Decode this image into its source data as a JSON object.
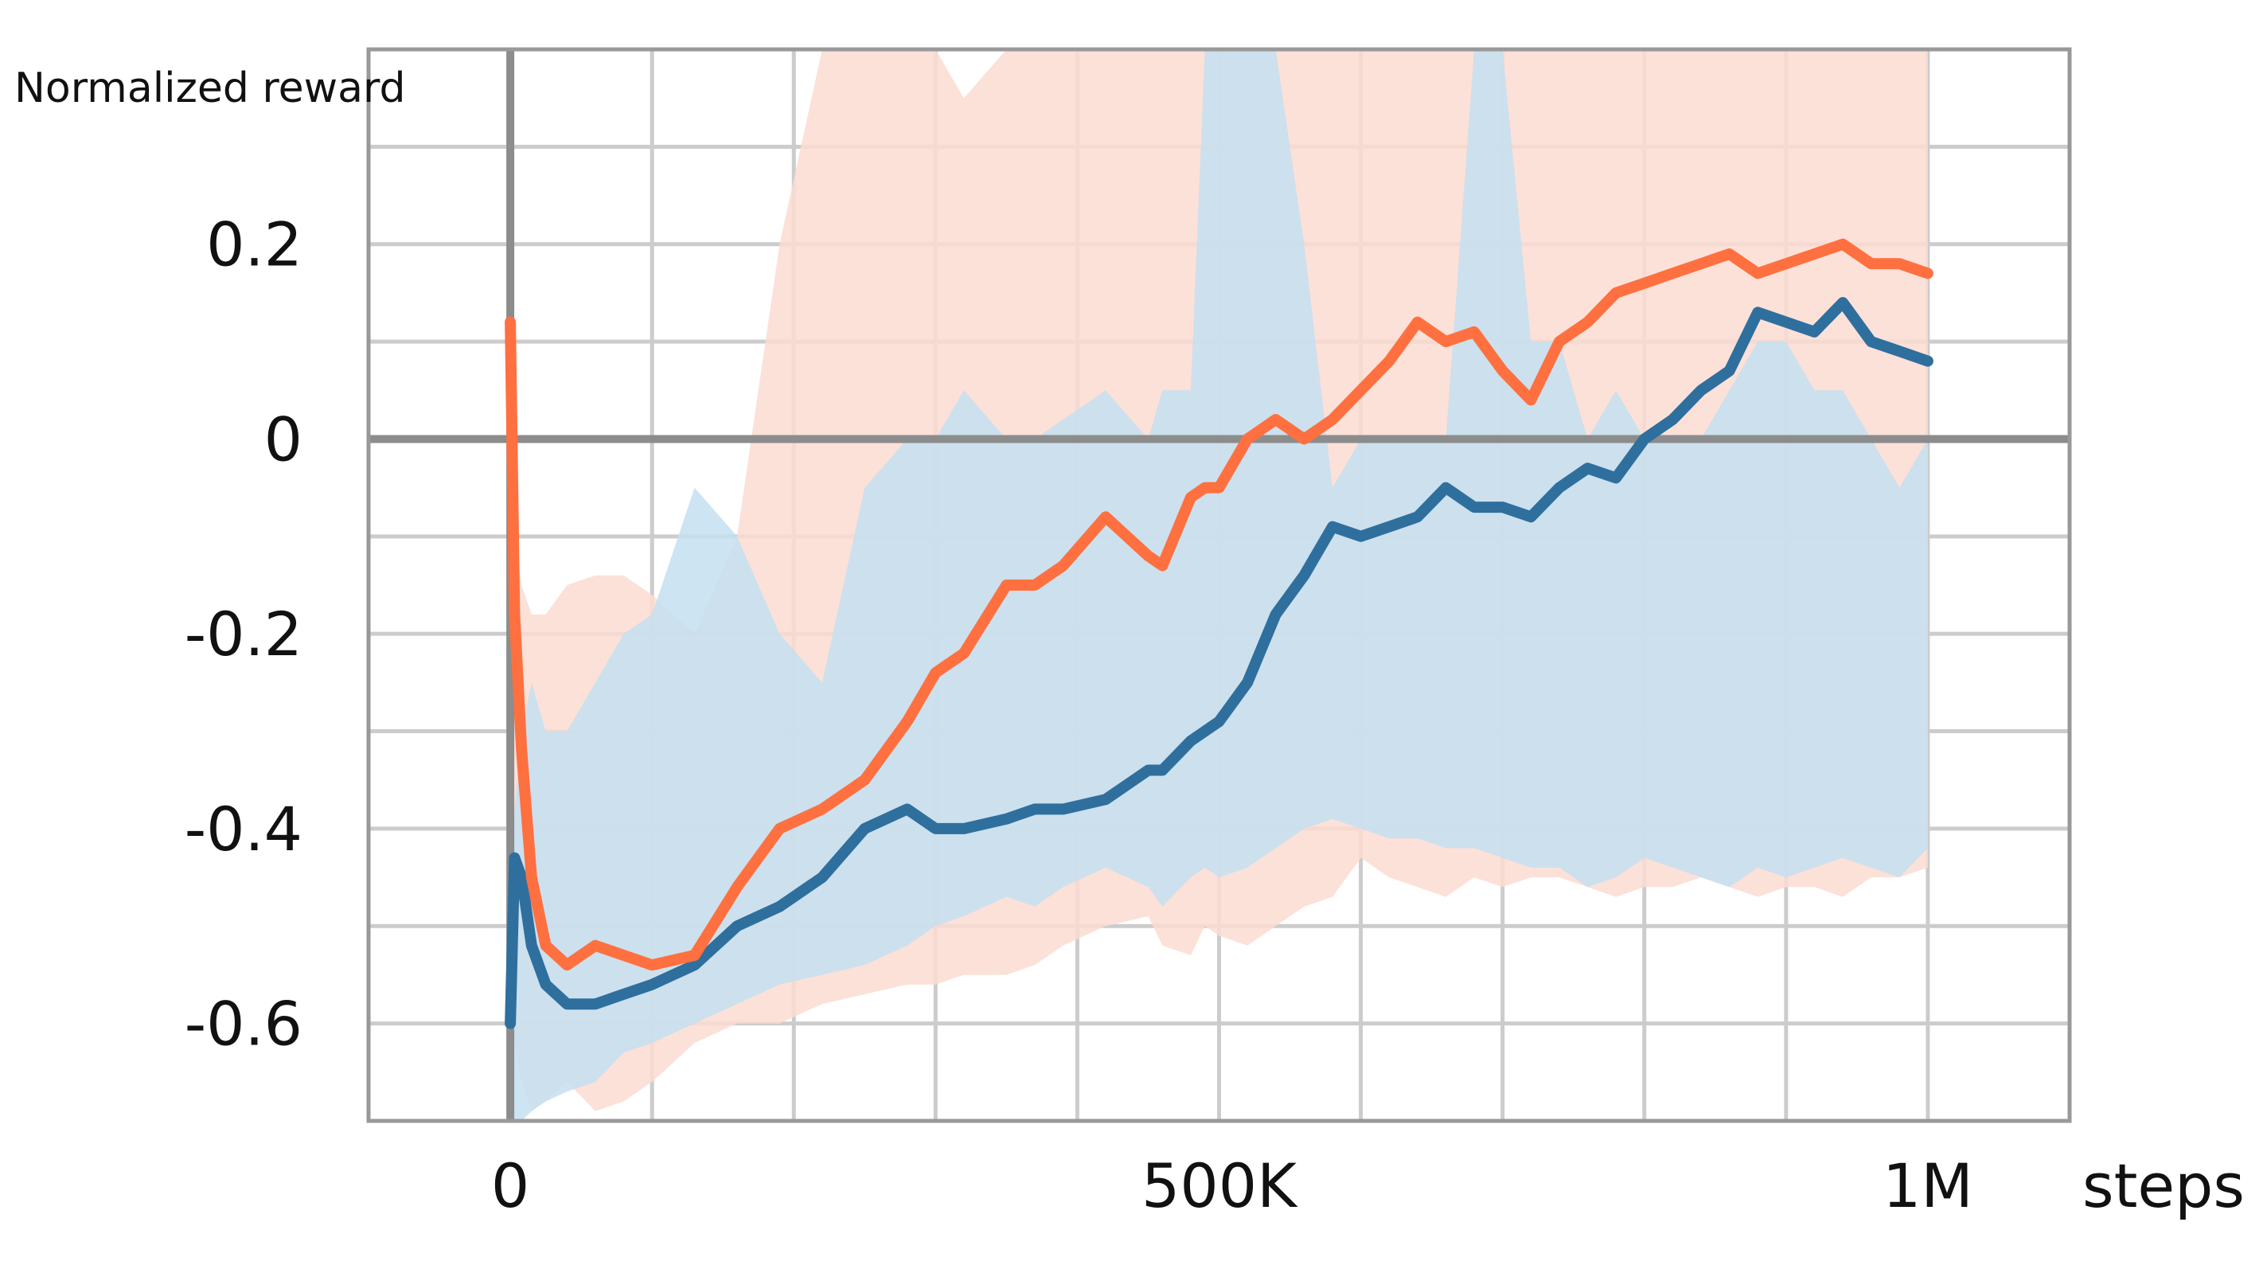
{
  "chart_data": {
    "type": "line",
    "title": "",
    "ylabel": "Normalized reward",
    "xlabel": "steps",
    "xlim": [
      -100000,
      1100000
    ],
    "ylim": [
      -0.7,
      0.4
    ],
    "x_ticks": [
      {
        "value": 0,
        "label": "0"
      },
      {
        "value": 500000,
        "label": "500K"
      },
      {
        "value": 1000000,
        "label": "1M"
      }
    ],
    "y_ticks": [
      {
        "value": 0.2,
        "label": "0.2"
      },
      {
        "value": 0,
        "label": "0"
      },
      {
        "value": -0.2,
        "label": "-0.2"
      },
      {
        "value": -0.4,
        "label": "-0.4"
      },
      {
        "value": -0.6,
        "label": "-0.6"
      }
    ],
    "grid": true,
    "legend": "none",
    "series": [
      {
        "color": "#ff7040",
        "band_color": "#fcdcd2",
        "x": [
          0,
          3000,
          8000,
          15000,
          25000,
          40000,
          60000,
          80000,
          100000,
          130000,
          160000,
          190000,
          220000,
          250000,
          280000,
          300000,
          320000,
          350000,
          370000,
          390000,
          420000,
          450000,
          460000,
          480000,
          490000,
          500000,
          520000,
          540000,
          560000,
          580000,
          600000,
          620000,
          640000,
          660000,
          680000,
          700000,
          720000,
          740000,
          760000,
          780000,
          800000,
          820000,
          840000,
          860000,
          880000,
          900000,
          920000,
          940000,
          960000,
          980000,
          1000000
        ],
        "values": [
          0.12,
          -0.18,
          -0.32,
          -0.45,
          -0.52,
          -0.54,
          -0.52,
          -0.53,
          -0.54,
          -0.53,
          -0.46,
          -0.4,
          -0.38,
          -0.35,
          -0.29,
          -0.24,
          -0.22,
          -0.15,
          -0.15,
          -0.13,
          -0.08,
          -0.12,
          -0.13,
          -0.06,
          -0.05,
          -0.05,
          0.0,
          0.02,
          0.0,
          0.02,
          0.05,
          0.08,
          0.12,
          0.1,
          0.11,
          0.07,
          0.04,
          0.1,
          0.12,
          0.15,
          0.16,
          0.17,
          0.18,
          0.19,
          0.17,
          0.18,
          0.19,
          0.2,
          0.18,
          0.18,
          0.17
        ],
        "band_upper": [
          0.15,
          -0.1,
          -0.15,
          -0.18,
          -0.18,
          -0.15,
          -0.14,
          -0.14,
          -0.16,
          -0.2,
          -0.1,
          0.2,
          0.4,
          0.4,
          0.4,
          0.4,
          0.35,
          0.4,
          0.4,
          0.4,
          0.4,
          0.4,
          0.4,
          0.4,
          0.4,
          0.4,
          0.4,
          0.4,
          0.4,
          0.4,
          0.4,
          0.4,
          0.4,
          0.4,
          0.4,
          0.4,
          0.4,
          0.4,
          0.4,
          0.4,
          0.4,
          0.4,
          0.4,
          0.4,
          0.4,
          0.4,
          0.4,
          0.4,
          0.4,
          0.4,
          0.4
        ],
        "band_lower": [
          -0.55,
          -0.62,
          -0.66,
          -0.69,
          -0.68,
          -0.66,
          -0.69,
          -0.68,
          -0.66,
          -0.62,
          -0.6,
          -0.6,
          -0.58,
          -0.57,
          -0.56,
          -0.56,
          -0.55,
          -0.55,
          -0.54,
          -0.52,
          -0.5,
          -0.49,
          -0.52,
          -0.53,
          -0.5,
          -0.51,
          -0.52,
          -0.5,
          -0.48,
          -0.47,
          -0.43,
          -0.45,
          -0.46,
          -0.47,
          -0.45,
          -0.46,
          -0.45,
          -0.45,
          -0.46,
          -0.47,
          -0.46,
          -0.46,
          -0.45,
          -0.46,
          -0.47,
          -0.46,
          -0.46,
          -0.47,
          -0.45,
          -0.45,
          -0.44
        ]
      },
      {
        "color": "#2e6f9e",
        "band_color": "#c4dff0",
        "x": [
          0,
          3000,
          8000,
          15000,
          25000,
          40000,
          60000,
          80000,
          100000,
          130000,
          160000,
          190000,
          220000,
          250000,
          280000,
          300000,
          320000,
          350000,
          370000,
          390000,
          420000,
          450000,
          460000,
          480000,
          490000,
          500000,
          520000,
          540000,
          560000,
          580000,
          600000,
          620000,
          640000,
          660000,
          680000,
          700000,
          720000,
          740000,
          760000,
          780000,
          800000,
          820000,
          840000,
          860000,
          880000,
          900000,
          920000,
          940000,
          960000,
          980000,
          1000000
        ],
        "values": [
          -0.6,
          -0.43,
          -0.45,
          -0.52,
          -0.56,
          -0.58,
          -0.58,
          -0.57,
          -0.56,
          -0.54,
          -0.5,
          -0.48,
          -0.45,
          -0.4,
          -0.38,
          -0.4,
          -0.4,
          -0.39,
          -0.38,
          -0.38,
          -0.37,
          -0.34,
          -0.34,
          -0.31,
          -0.3,
          -0.29,
          -0.25,
          -0.18,
          -0.14,
          -0.09,
          -0.1,
          -0.09,
          -0.08,
          -0.05,
          -0.07,
          -0.07,
          -0.08,
          -0.05,
          -0.03,
          -0.04,
          0.0,
          0.02,
          0.05,
          0.07,
          0.13,
          0.12,
          0.11,
          0.14,
          0.1,
          0.09,
          0.08
        ],
        "band_upper": [
          -0.42,
          -0.38,
          -0.3,
          -0.25,
          -0.3,
          -0.3,
          -0.25,
          -0.2,
          -0.18,
          -0.05,
          -0.1,
          -0.2,
          -0.25,
          -0.05,
          0.0,
          0.0,
          0.05,
          0.0,
          0.0,
          0.02,
          0.05,
          0.0,
          0.05,
          0.05,
          0.4,
          0.4,
          0.4,
          0.4,
          0.2,
          -0.05,
          0.0,
          0.0,
          0.0,
          0.0,
          0.4,
          0.4,
          0.1,
          0.1,
          0.0,
          0.05,
          0.0,
          0.0,
          0.0,
          0.05,
          0.1,
          0.1,
          0.05,
          0.05,
          0.0,
          -0.05,
          0.0
        ],
        "band_lower": [
          -0.7,
          -0.7,
          -0.7,
          -0.69,
          -0.68,
          -0.67,
          -0.66,
          -0.63,
          -0.62,
          -0.6,
          -0.58,
          -0.56,
          -0.55,
          -0.54,
          -0.52,
          -0.5,
          -0.49,
          -0.47,
          -0.48,
          -0.46,
          -0.44,
          -0.46,
          -0.48,
          -0.45,
          -0.44,
          -0.45,
          -0.44,
          -0.42,
          -0.4,
          -0.39,
          -0.4,
          -0.41,
          -0.41,
          -0.42,
          -0.42,
          -0.43,
          -0.44,
          -0.44,
          -0.46,
          -0.45,
          -0.43,
          -0.44,
          -0.45,
          -0.46,
          -0.44,
          -0.45,
          -0.44,
          -0.43,
          -0.44,
          -0.45,
          -0.42
        ]
      }
    ]
  }
}
